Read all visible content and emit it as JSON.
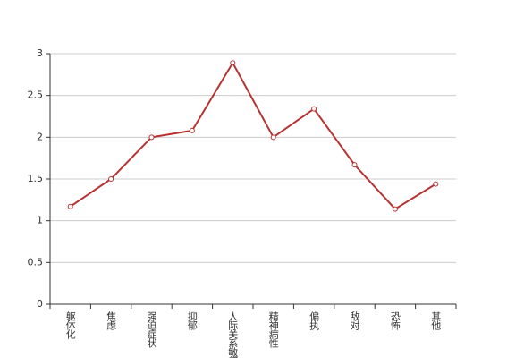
{
  "chart_data": {
    "type": "line",
    "categories": [
      "躯体化",
      "焦虑",
      "强迫症状",
      "抑郁",
      "人际关系敏感",
      "精神病性",
      "偏执",
      "敌对",
      "恐怖",
      "其他"
    ],
    "values": [
      1.17,
      1.5,
      2.0,
      2.08,
      2.89,
      2.0,
      2.34,
      1.67,
      1.14,
      1.44
    ],
    "color": "#b83232",
    "ylim": [
      0,
      3
    ],
    "yticks": [
      0,
      0.5,
      1,
      1.5,
      2,
      2.5,
      3
    ],
    "grid": true
  }
}
